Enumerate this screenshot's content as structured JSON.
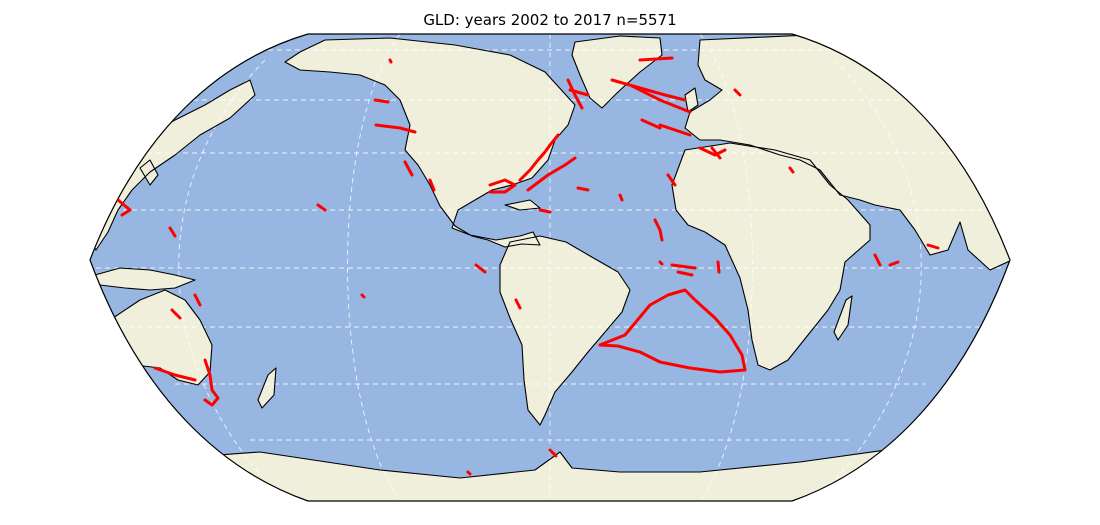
{
  "title": "GLD: years 2002 to 2017  n=5571",
  "map": {
    "projection": "robinson",
    "central_longitude": -60,
    "ocean_color": "#97b6e1",
    "land_color": "#efefdb",
    "coastline_color": "#000000",
    "gridline_color": "#ffffff",
    "gridline_style": "dashed",
    "marker_color": "#ff0000"
  },
  "chart_data": {
    "type": "map-scatter",
    "title": "GLD: years 2002 to 2017  n=5571",
    "year_range": [
      2002,
      2017
    ],
    "n": 5571,
    "graticule": {
      "lon_step": 60,
      "lat_step": 15
    }
  }
}
